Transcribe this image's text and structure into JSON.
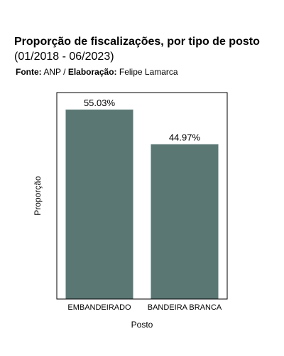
{
  "header": {
    "title": "Proporção de fiscalizações, por tipo de posto",
    "subtitle": "(01/2018 - 06/2023)",
    "source_label": "Fonte:",
    "source_value": "ANP",
    "separator": "/",
    "credit_label": "Elaboração:",
    "credit_value": "Felipe Lamarca"
  },
  "colors": {
    "bar": "#5a7774",
    "border": "#000000"
  },
  "chart_data": {
    "type": "bar",
    "title": "Proporção de fiscalizações, por tipo de posto",
    "subtitle": "(01/2018 - 06/2023)",
    "xlabel": "Posto",
    "ylabel": "Proporção",
    "categories": [
      "EMBANDEIRADO",
      "BANDEIRA BRANCA"
    ],
    "values": [
      55.03,
      44.97
    ],
    "data_labels": [
      "55.03%",
      "44.97%"
    ],
    "ylim": [
      0,
      60
    ],
    "grid": false,
    "legend": "none"
  }
}
